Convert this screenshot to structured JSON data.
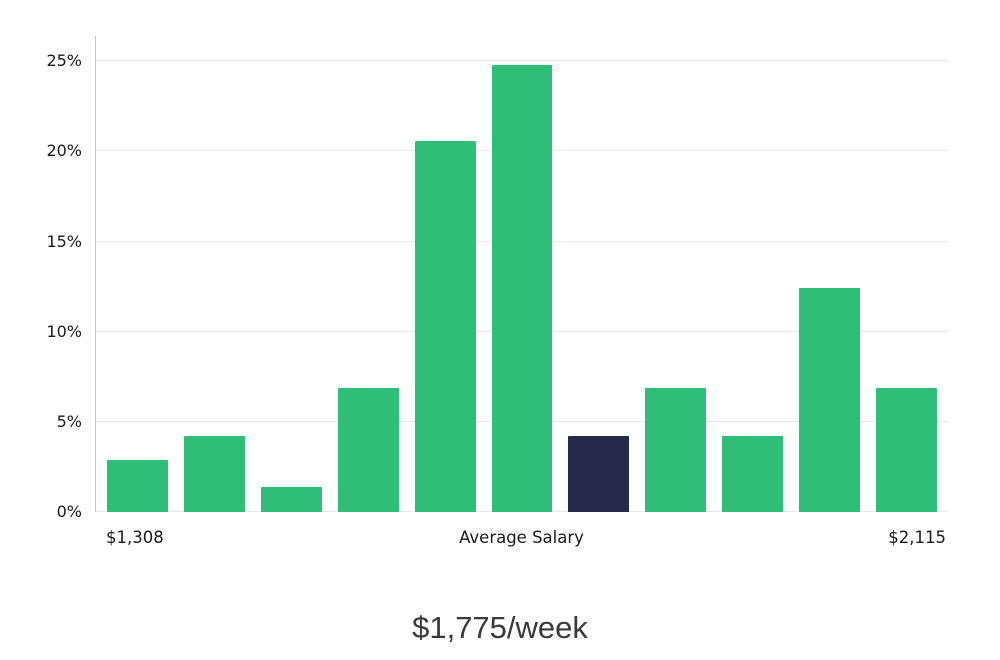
{
  "chart_data": {
    "type": "bar",
    "title": "",
    "xlabel": "",
    "ylabel": "",
    "values": [
      2.9,
      4.2,
      1.4,
      6.9,
      20.6,
      24.8,
      4.2,
      6.9,
      4.2,
      12.4,
      6.9
    ],
    "highlighted_index": 6,
    "ylim": [
      0,
      26.4
    ],
    "grid": "horizontal",
    "legend": "none",
    "yticks": [
      {
        "value": 0,
        "label": "0%"
      },
      {
        "value": 5,
        "label": "5%"
      },
      {
        "value": 10,
        "label": "10%"
      },
      {
        "value": 15,
        "label": "15%"
      },
      {
        "value": 20,
        "label": "20%"
      },
      {
        "value": 25,
        "label": "25%"
      }
    ],
    "x_axis_labels": {
      "left": "$1,308",
      "center": "Average Salary",
      "right": "$2,115"
    },
    "caption": "$1,775/week",
    "colors": {
      "bar": "#2fbe77",
      "highlight": "#262949",
      "grid": "#e7e7e7",
      "axis": "#c9c9c9",
      "text": "#1a1a1a",
      "caption_text": "#3a3a3a"
    }
  }
}
